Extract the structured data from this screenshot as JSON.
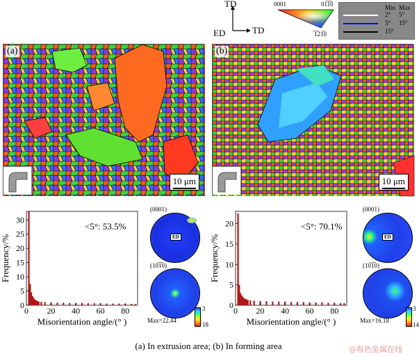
{
  "axes_triad": {
    "td_top": "TD",
    "ed": "ED",
    "td_right": "TD"
  },
  "ipf_key": {
    "label_top_left": "0001",
    "label_top_right": "01̅1̅0",
    "label_bottom": "̅1̅21̅0",
    "colors": {
      "red": "#ff2020",
      "green": "#20ff20",
      "blue": "#2040ff"
    }
  },
  "boundary_legend": {
    "min_label": "Min",
    "max_label": "Max",
    "rows": [
      {
        "min": "2°",
        "max": "5°",
        "color": "#ffffff"
      },
      {
        "min": "5°",
        "max": "15°",
        "color": "#0000ff"
      },
      {
        "min": "15°",
        "max": "",
        "color": "#000000"
      }
    ]
  },
  "panels": [
    {
      "letter": "(a)",
      "scale_bar": "10 μm",
      "stat": "<5°: 53.5%",
      "pf_top_label": "(0001)",
      "pf_bottom_label": "(10̅1̅0)",
      "ed_label": "ED",
      "pf_max": "Max=22.44",
      "cbar_top": "3",
      "cbar_bottom": "18"
    },
    {
      "letter": "(b)",
      "scale_bar": "10 μm",
      "stat": "<5°: 70.1%",
      "pf_top_label": "(0001)",
      "pf_bottom_label": "(10̅1̅0)",
      "ed_label": "ED",
      "pf_max": "Max=16.18",
      "cbar_top": "3",
      "cbar_bottom": "14"
    }
  ],
  "chart_data": [
    {
      "type": "bar",
      "xlabel": "Misorientation angle/(° )",
      "ylabel": "Frequency/%",
      "xlim": [
        0,
        90
      ],
      "ylim": [
        0,
        33
      ],
      "xticks": [
        "0",
        "20",
        "40",
        "60",
        "80"
      ],
      "yticks": [
        "0",
        "5",
        "10",
        "15",
        "20",
        "25",
        "30"
      ],
      "bar_color": "#b01818",
      "x": [
        2,
        3,
        4,
        5,
        6,
        7,
        8,
        9,
        10,
        12,
        15,
        20,
        25,
        30,
        35,
        40,
        45,
        50,
        55,
        60,
        65,
        70,
        75,
        80,
        85,
        88
      ],
      "values": [
        33,
        7.5,
        4.5,
        3.2,
        2.5,
        2.0,
        1.7,
        1.5,
        1.3,
        1.2,
        1.1,
        1.0,
        0.9,
        0.9,
        0.8,
        0.8,
        0.8,
        0.7,
        0.7,
        0.7,
        0.6,
        0.6,
        0.6,
        0.5,
        0.5,
        0.4
      ]
    },
    {
      "type": "bar",
      "xlabel": "Misorientation angle/(° )",
      "ylabel": "Frequency/%",
      "xlim": [
        0,
        90
      ],
      "ylim": [
        0,
        23
      ],
      "xticks": [
        "0",
        "20",
        "40",
        "60",
        "80"
      ],
      "yticks": [
        "0",
        "5",
        "10",
        "15",
        "20"
      ],
      "bar_color": "#b01818",
      "x": [
        2,
        3,
        4,
        5,
        6,
        7,
        8,
        9,
        10,
        12,
        15,
        20,
        25,
        30,
        35,
        40,
        45,
        50,
        55,
        60,
        65,
        70,
        75,
        80,
        85,
        88
      ],
      "values": [
        22.5,
        5.0,
        3.0,
        2.4,
        2.0,
        1.7,
        1.5,
        1.4,
        1.3,
        1.2,
        1.1,
        1.0,
        1.0,
        0.9,
        0.9,
        0.9,
        0.8,
        0.8,
        0.8,
        0.7,
        0.7,
        0.7,
        0.6,
        0.6,
        0.5,
        0.5
      ]
    }
  ],
  "caption": "(a)  In extrusion area; (b) In forming area",
  "watermark": "@有色金属在线"
}
